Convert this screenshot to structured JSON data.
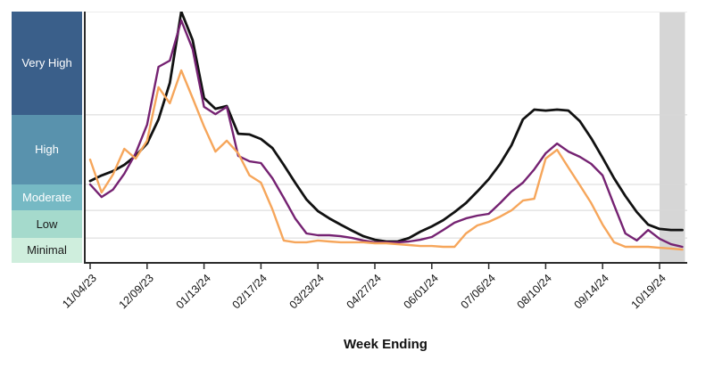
{
  "y_axis": {
    "categories": [
      {
        "label": "Very High",
        "range": [
          5.89,
          10.0
        ],
        "color": "#3a5f8a",
        "text_color": "#ffffff"
      },
      {
        "label": "High",
        "range": [
          3.12,
          5.89
        ],
        "color": "#5992ad",
        "text_color": "#ffffff"
      },
      {
        "label": "Moderate",
        "range": [
          2.09,
          3.12
        ],
        "color": "#76b9c4",
        "text_color": "#ffffff"
      },
      {
        "label": "Low",
        "range": [
          0.99,
          2.09
        ],
        "color": "#a5dacc",
        "text_color": "#1a1a1a"
      },
      {
        "label": "Minimal",
        "range": [
          0.0,
          0.99
        ],
        "color": "#cfeedd",
        "text_color": "#1a1a1a"
      }
    ]
  },
  "x_axis": {
    "title": "Week Ending",
    "ticks": [
      {
        "label": "11/04/23",
        "week": 0
      },
      {
        "label": "12/09/23",
        "week": 5
      },
      {
        "label": "01/13/24",
        "week": 10
      },
      {
        "label": "02/17/24",
        "week": 15
      },
      {
        "label": "03/23/24",
        "week": 20
      },
      {
        "label": "04/27/24",
        "week": 25
      },
      {
        "label": "06/01/24",
        "week": 30
      },
      {
        "label": "07/06/24",
        "week": 35
      },
      {
        "label": "08/10/24",
        "week": 40
      },
      {
        "label": "09/14/24",
        "week": 45
      },
      {
        "label": "10/19/24",
        "week": 50
      }
    ]
  },
  "chart_data": {
    "type": "line",
    "ylim": [
      0,
      10
    ],
    "grid": true,
    "legend_position": "none",
    "y_scale_note": "relative activity level units; category band boundaries at 0.99, 2.09, 3.12, 5.89",
    "x": [
      "11/04/23",
      "11/11/23",
      "11/18/23",
      "11/25/23",
      "12/02/23",
      "12/09/23",
      "12/16/23",
      "12/23/23",
      "12/30/23",
      "01/06/24",
      "01/13/24",
      "01/20/24",
      "01/27/24",
      "02/03/24",
      "02/10/24",
      "02/17/24",
      "02/24/24",
      "03/02/24",
      "03/09/24",
      "03/16/24",
      "03/23/24",
      "03/30/24",
      "04/06/24",
      "04/13/24",
      "04/20/24",
      "04/27/24",
      "05/04/24",
      "05/11/24",
      "05/18/24",
      "05/25/24",
      "06/01/24",
      "06/08/24",
      "06/15/24",
      "06/22/24",
      "06/29/24",
      "07/06/24",
      "07/13/24",
      "07/20/24",
      "07/27/24",
      "08/03/24",
      "08/10/24",
      "08/17/24",
      "08/24/24",
      "08/31/24",
      "09/07/24",
      "09/14/24",
      "09/21/24",
      "09/28/24",
      "10/05/24",
      "10/12/24",
      "10/19/24",
      "10/26/24",
      "11/02/24"
    ],
    "series": [
      {
        "name": "series-black",
        "color": "#111111",
        "stroke_width": 2.8,
        "values": [
          3.26,
          3.48,
          3.65,
          3.9,
          4.26,
          4.75,
          5.71,
          7.16,
          10.0,
          8.87,
          6.56,
          6.13,
          6.24,
          5.14,
          5.11,
          4.93,
          4.57,
          3.9,
          3.19,
          2.52,
          2.06,
          1.77,
          1.52,
          1.28,
          1.06,
          0.92,
          0.85,
          0.85,
          0.99,
          1.24,
          1.45,
          1.7,
          2.02,
          2.38,
          2.84,
          3.33,
          3.94,
          4.68,
          5.71,
          6.1,
          6.06,
          6.1,
          6.06,
          5.64,
          4.96,
          4.18,
          3.37,
          2.66,
          2.02,
          1.52,
          1.35,
          1.31,
          1.31
        ]
      },
      {
        "name": "series-purple",
        "color": "#752272",
        "stroke_width": 2.4,
        "values": [
          3.12,
          2.62,
          2.91,
          3.55,
          4.36,
          5.5,
          7.8,
          8.05,
          9.65,
          8.51,
          6.21,
          5.92,
          6.21,
          4.26,
          4.04,
          3.97,
          3.37,
          2.59,
          1.77,
          1.17,
          1.1,
          1.1,
          1.06,
          0.99,
          0.89,
          0.82,
          0.82,
          0.82,
          0.85,
          0.92,
          1.03,
          1.31,
          1.6,
          1.77,
          1.88,
          1.95,
          2.38,
          2.84,
          3.19,
          3.72,
          4.36,
          4.75,
          4.43,
          4.22,
          3.94,
          3.48,
          2.3,
          1.17,
          0.89,
          1.31,
          0.96,
          0.74,
          0.64
        ]
      },
      {
        "name": "series-orange",
        "color": "#f6a65b",
        "stroke_width": 2.4,
        "values": [
          4.11,
          2.8,
          3.51,
          4.54,
          4.15,
          4.86,
          6.99,
          6.35,
          7.66,
          6.56,
          5.43,
          4.43,
          4.86,
          4.36,
          3.48,
          3.19,
          2.13,
          0.89,
          0.82,
          0.82,
          0.89,
          0.85,
          0.82,
          0.82,
          0.82,
          0.78,
          0.78,
          0.74,
          0.71,
          0.67,
          0.67,
          0.64,
          0.64,
          1.17,
          1.49,
          1.63,
          1.84,
          2.09,
          2.48,
          2.55,
          4.15,
          4.5,
          3.79,
          3.09,
          2.38,
          1.52,
          0.82,
          0.64,
          0.64,
          0.64,
          0.6,
          0.57,
          0.53
        ]
      }
    ],
    "shaded_region": {
      "from_week": 50,
      "to_week": 52,
      "color": "#d6d6d6"
    }
  },
  "style": {
    "gridline_color": "#d8d8d8",
    "axis_color": "#2a2a2a",
    "tick_color": "#2a2a2a"
  }
}
